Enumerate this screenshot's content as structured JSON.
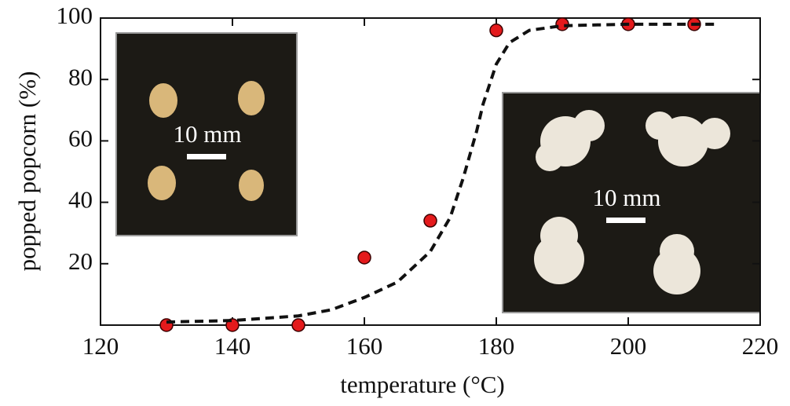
{
  "chart_data": {
    "type": "scatter",
    "xlabel": "temperature (°C)",
    "ylabel": "popped popcorn (%)",
    "xlim": [
      120,
      220
    ],
    "xticks": [
      120,
      140,
      160,
      180,
      200,
      220
    ],
    "ylim": [
      0,
      100
    ],
    "yticks": [
      20,
      40,
      60,
      80,
      100
    ],
    "series": [
      {
        "style": "marker",
        "color": "#e41a1c",
        "x": [
          130,
          140,
          150,
          160,
          170,
          180,
          190,
          200,
          210
        ],
        "values": [
          0,
          0,
          0,
          22,
          34,
          96,
          98,
          98,
          98
        ]
      },
      {
        "style": "dashed",
        "color": "#111111",
        "x": [
          130,
          140,
          150,
          155,
          160,
          165,
          170,
          173,
          175,
          177,
          178,
          180,
          182,
          185,
          190,
          200,
          213
        ],
        "values": [
          1,
          1.5,
          3,
          5,
          9,
          14,
          24,
          35,
          48,
          63,
          72,
          85,
          92,
          96,
          97.5,
          98,
          98
        ]
      }
    ],
    "annotations": [
      "10 mm",
      "10 mm"
    ]
  }
}
